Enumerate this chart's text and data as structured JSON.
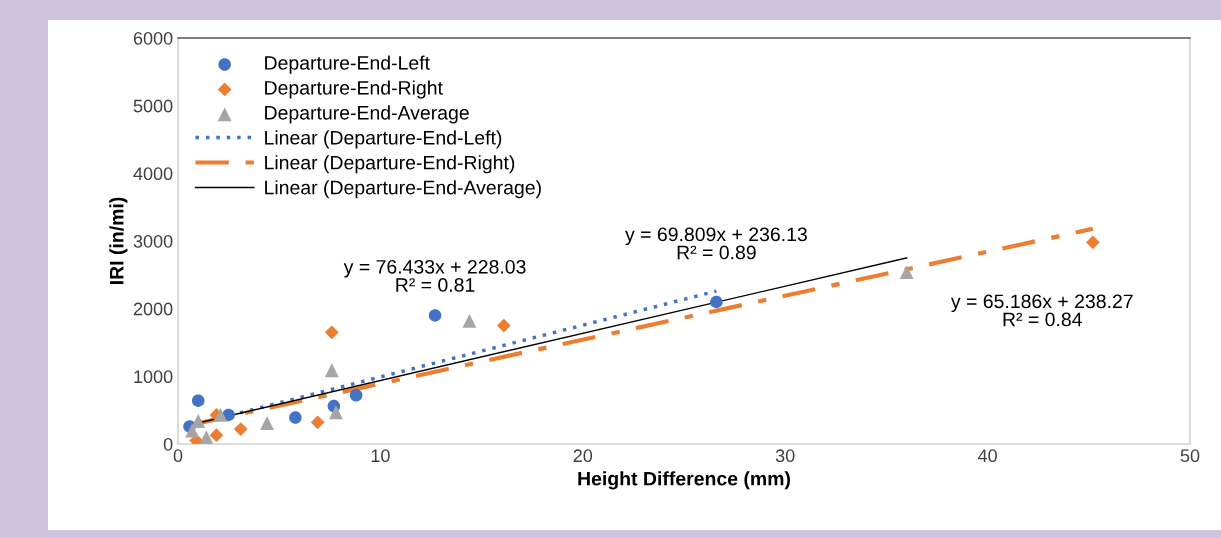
{
  "chart_data": {
    "type": "scatter",
    "xlabel": "Height Difference (mm)",
    "ylabel": "IRI (in/mi)",
    "xlim": [
      0,
      50
    ],
    "xticks": [
      0,
      10,
      20,
      30,
      40,
      50
    ],
    "ylim": [
      0,
      6000
    ],
    "yticks": [
      0,
      1000,
      2000,
      3000,
      4000,
      5000,
      6000
    ],
    "legend": "top left",
    "series": [
      {
        "name": "Departure-End-Left",
        "marker": "circle",
        "color": "#4472c4",
        "x": [
          0.57,
          1.0,
          2.5,
          5.8,
          7.7,
          8.8,
          12.7,
          26.6
        ],
        "values": [
          260,
          640,
          430,
          390,
          560,
          720,
          1900,
          2100
        ]
      },
      {
        "name": "Departure-End-Right",
        "marker": "diamond",
        "color": "#ed7d31",
        "x": [
          0.9,
          1.9,
          1.9,
          3.1,
          6.9,
          7.6,
          16.1,
          45.2
        ],
        "values": [
          50,
          130,
          430,
          220,
          320,
          1650,
          1750,
          2980
        ]
      },
      {
        "name": "Departure-End-Average",
        "marker": "triangle",
        "color": "#a5a5a5",
        "x": [
          0.7,
          1.0,
          1.4,
          2.1,
          4.4,
          7.6,
          7.8,
          14.4,
          36.0
        ],
        "values": [
          200,
          340,
          100,
          430,
          310,
          1090,
          470,
          1820,
          2540
        ]
      },
      {
        "name": "Linear (Departure-End-Left)",
        "type": "line",
        "line_style": "dotted",
        "color": "#4472c4",
        "x": [
          0.57,
          26.6
        ],
        "values": [
          270,
          2260
        ]
      },
      {
        "name": "Linear (Departure-End-Right)",
        "type": "line",
        "line_style": "dashed",
        "color": "#ed7d31",
        "x": [
          0.9,
          45.2
        ],
        "values": [
          300,
          3180
        ]
      },
      {
        "name": "Linear (Departure-End-Average)",
        "type": "line",
        "line_style": "solid",
        "color": "#000000",
        "x": [
          0.7,
          36.0
        ],
        "values": [
          290,
          2750
        ]
      }
    ],
    "annotations": [
      "y = 76.433x + 228.03\nR² = 0.81",
      "y = 69.809x + 236.13\nR² = 0.89",
      "y = 65.186x + 238.27\nR² = 0.84"
    ]
  }
}
